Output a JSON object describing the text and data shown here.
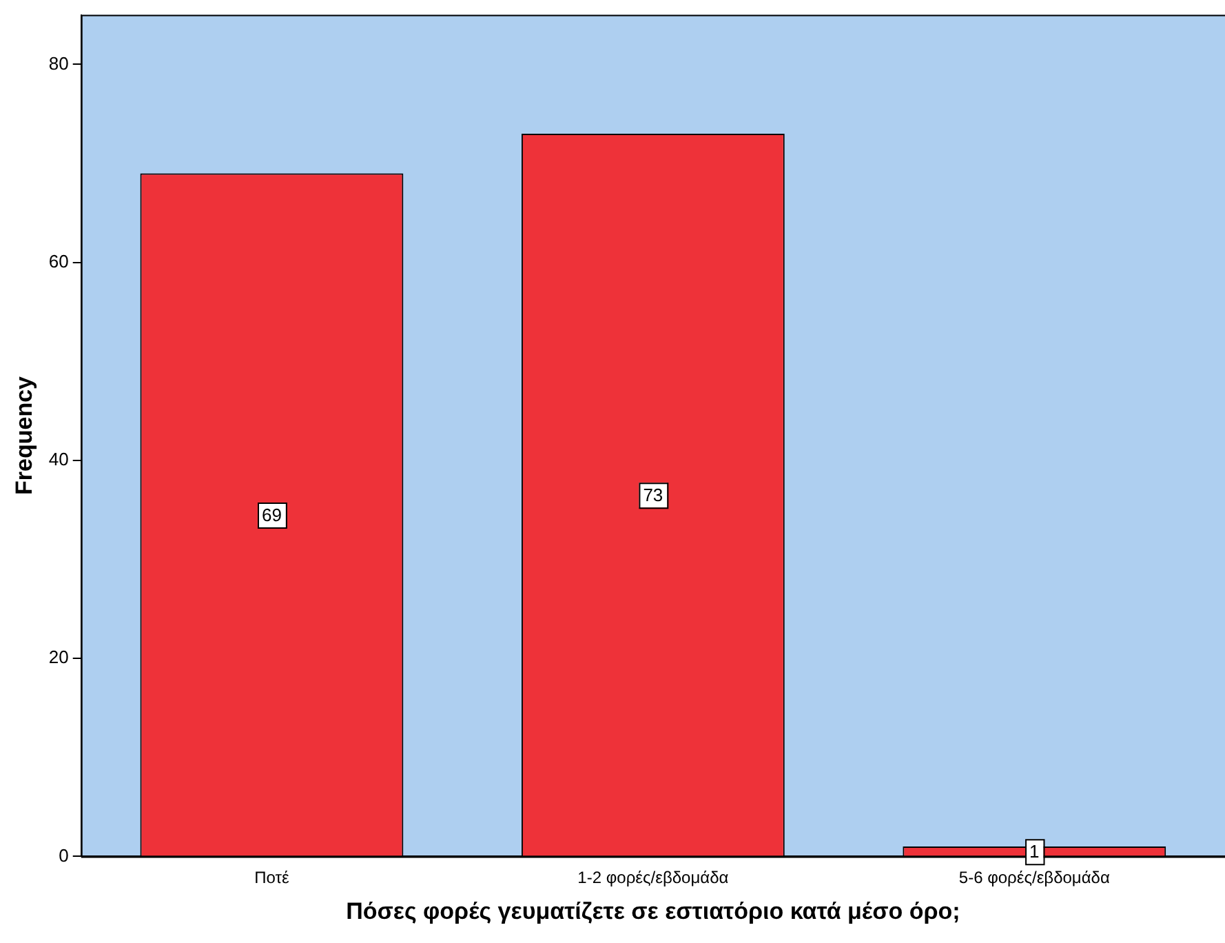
{
  "chart_data": {
    "type": "bar",
    "xlabel": "Πόσες φορές γευματίζετε σε εστιατόριο κατά μέσο όρο;",
    "ylabel": "Frequency",
    "categories": [
      "Ποτέ",
      "1-2 φορές/εβδομάδα",
      "5-6 φορές/εβδομάδα"
    ],
    "values": [
      69,
      73,
      1
    ],
    "color": "#ee3239",
    "ylim": [
      0,
      85
    ],
    "yticks": [
      0,
      20,
      40,
      60,
      80
    ],
    "grid": false,
    "legend": false,
    "data_labels": true
  }
}
